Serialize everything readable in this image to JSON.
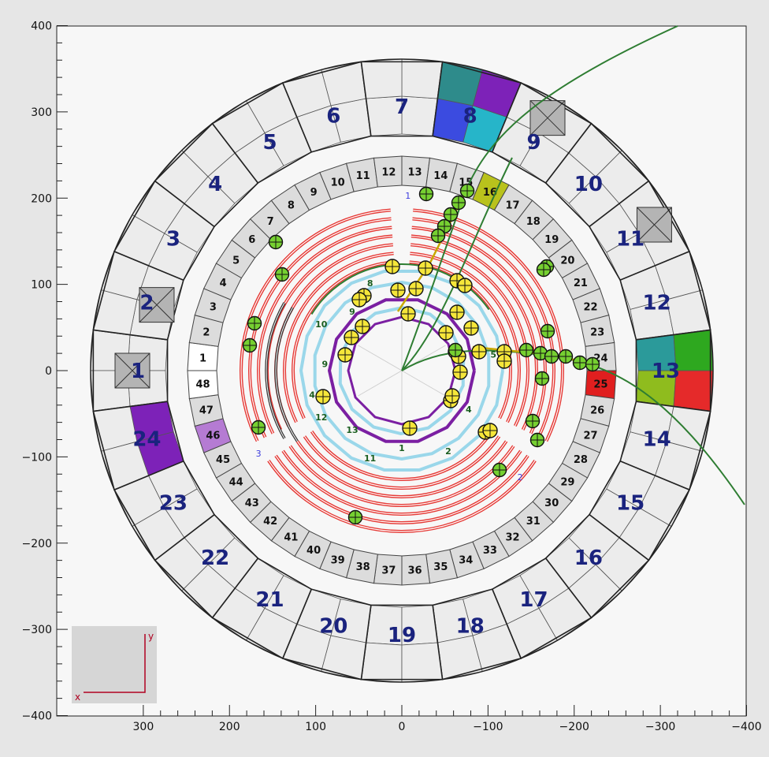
{
  "x_axis_ticks": [
    "300",
    "200",
    "100",
    "0",
    "−100",
    "−200",
    "−300",
    "−400"
  ],
  "y_axis_ticks": [
    "400",
    "300",
    "200",
    "100",
    "0",
    "−100",
    "−200",
    "−300",
    "−400"
  ],
  "outer_segments": [
    "1",
    "2",
    "3",
    "4",
    "5",
    "6",
    "7",
    "8",
    "9",
    "10",
    "11",
    "12",
    "13",
    "14",
    "15",
    "16",
    "17",
    "18",
    "19",
    "20",
    "21",
    "22",
    "23",
    "24"
  ],
  "crystal_labels": [
    "1",
    "2",
    "3",
    "4",
    "5",
    "6",
    "7",
    "8",
    "9",
    "10",
    "11",
    "12",
    "13",
    "14",
    "15",
    "16",
    "17",
    "18",
    "19",
    "20",
    "21",
    "22",
    "23",
    "24",
    "25",
    "26",
    "27",
    "28",
    "29",
    "30",
    "31",
    "32",
    "33",
    "34",
    "35",
    "36",
    "37",
    "38",
    "39",
    "40",
    "41",
    "42",
    "43",
    "44",
    "45",
    "46",
    "47",
    "48"
  ],
  "chamber_arm_labels": [
    "1",
    "2",
    "3"
  ],
  "axis_indicator": {
    "x_label": "x",
    "y_label": "y"
  },
  "colors": {
    "background": "#e6e6e6",
    "frame_bg": "#f7f7f7",
    "module_fill": "#ececec",
    "crystal_fill": "#dcdcdc",
    "hit_red": "#e53935",
    "track_green": "#2e7d32",
    "hit_yellow": "#f5e63a",
    "hit_green": "#76d031",
    "cluster_purple": "#7b1fa2",
    "cluster_cyan": "#26c6da",
    "cluster_blue": "#3949ab"
  },
  "highlighted_segments": {
    "outer": [
      "8",
      "13",
      "24"
    ],
    "crystal": [
      "16",
      "25",
      "46"
    ]
  }
}
